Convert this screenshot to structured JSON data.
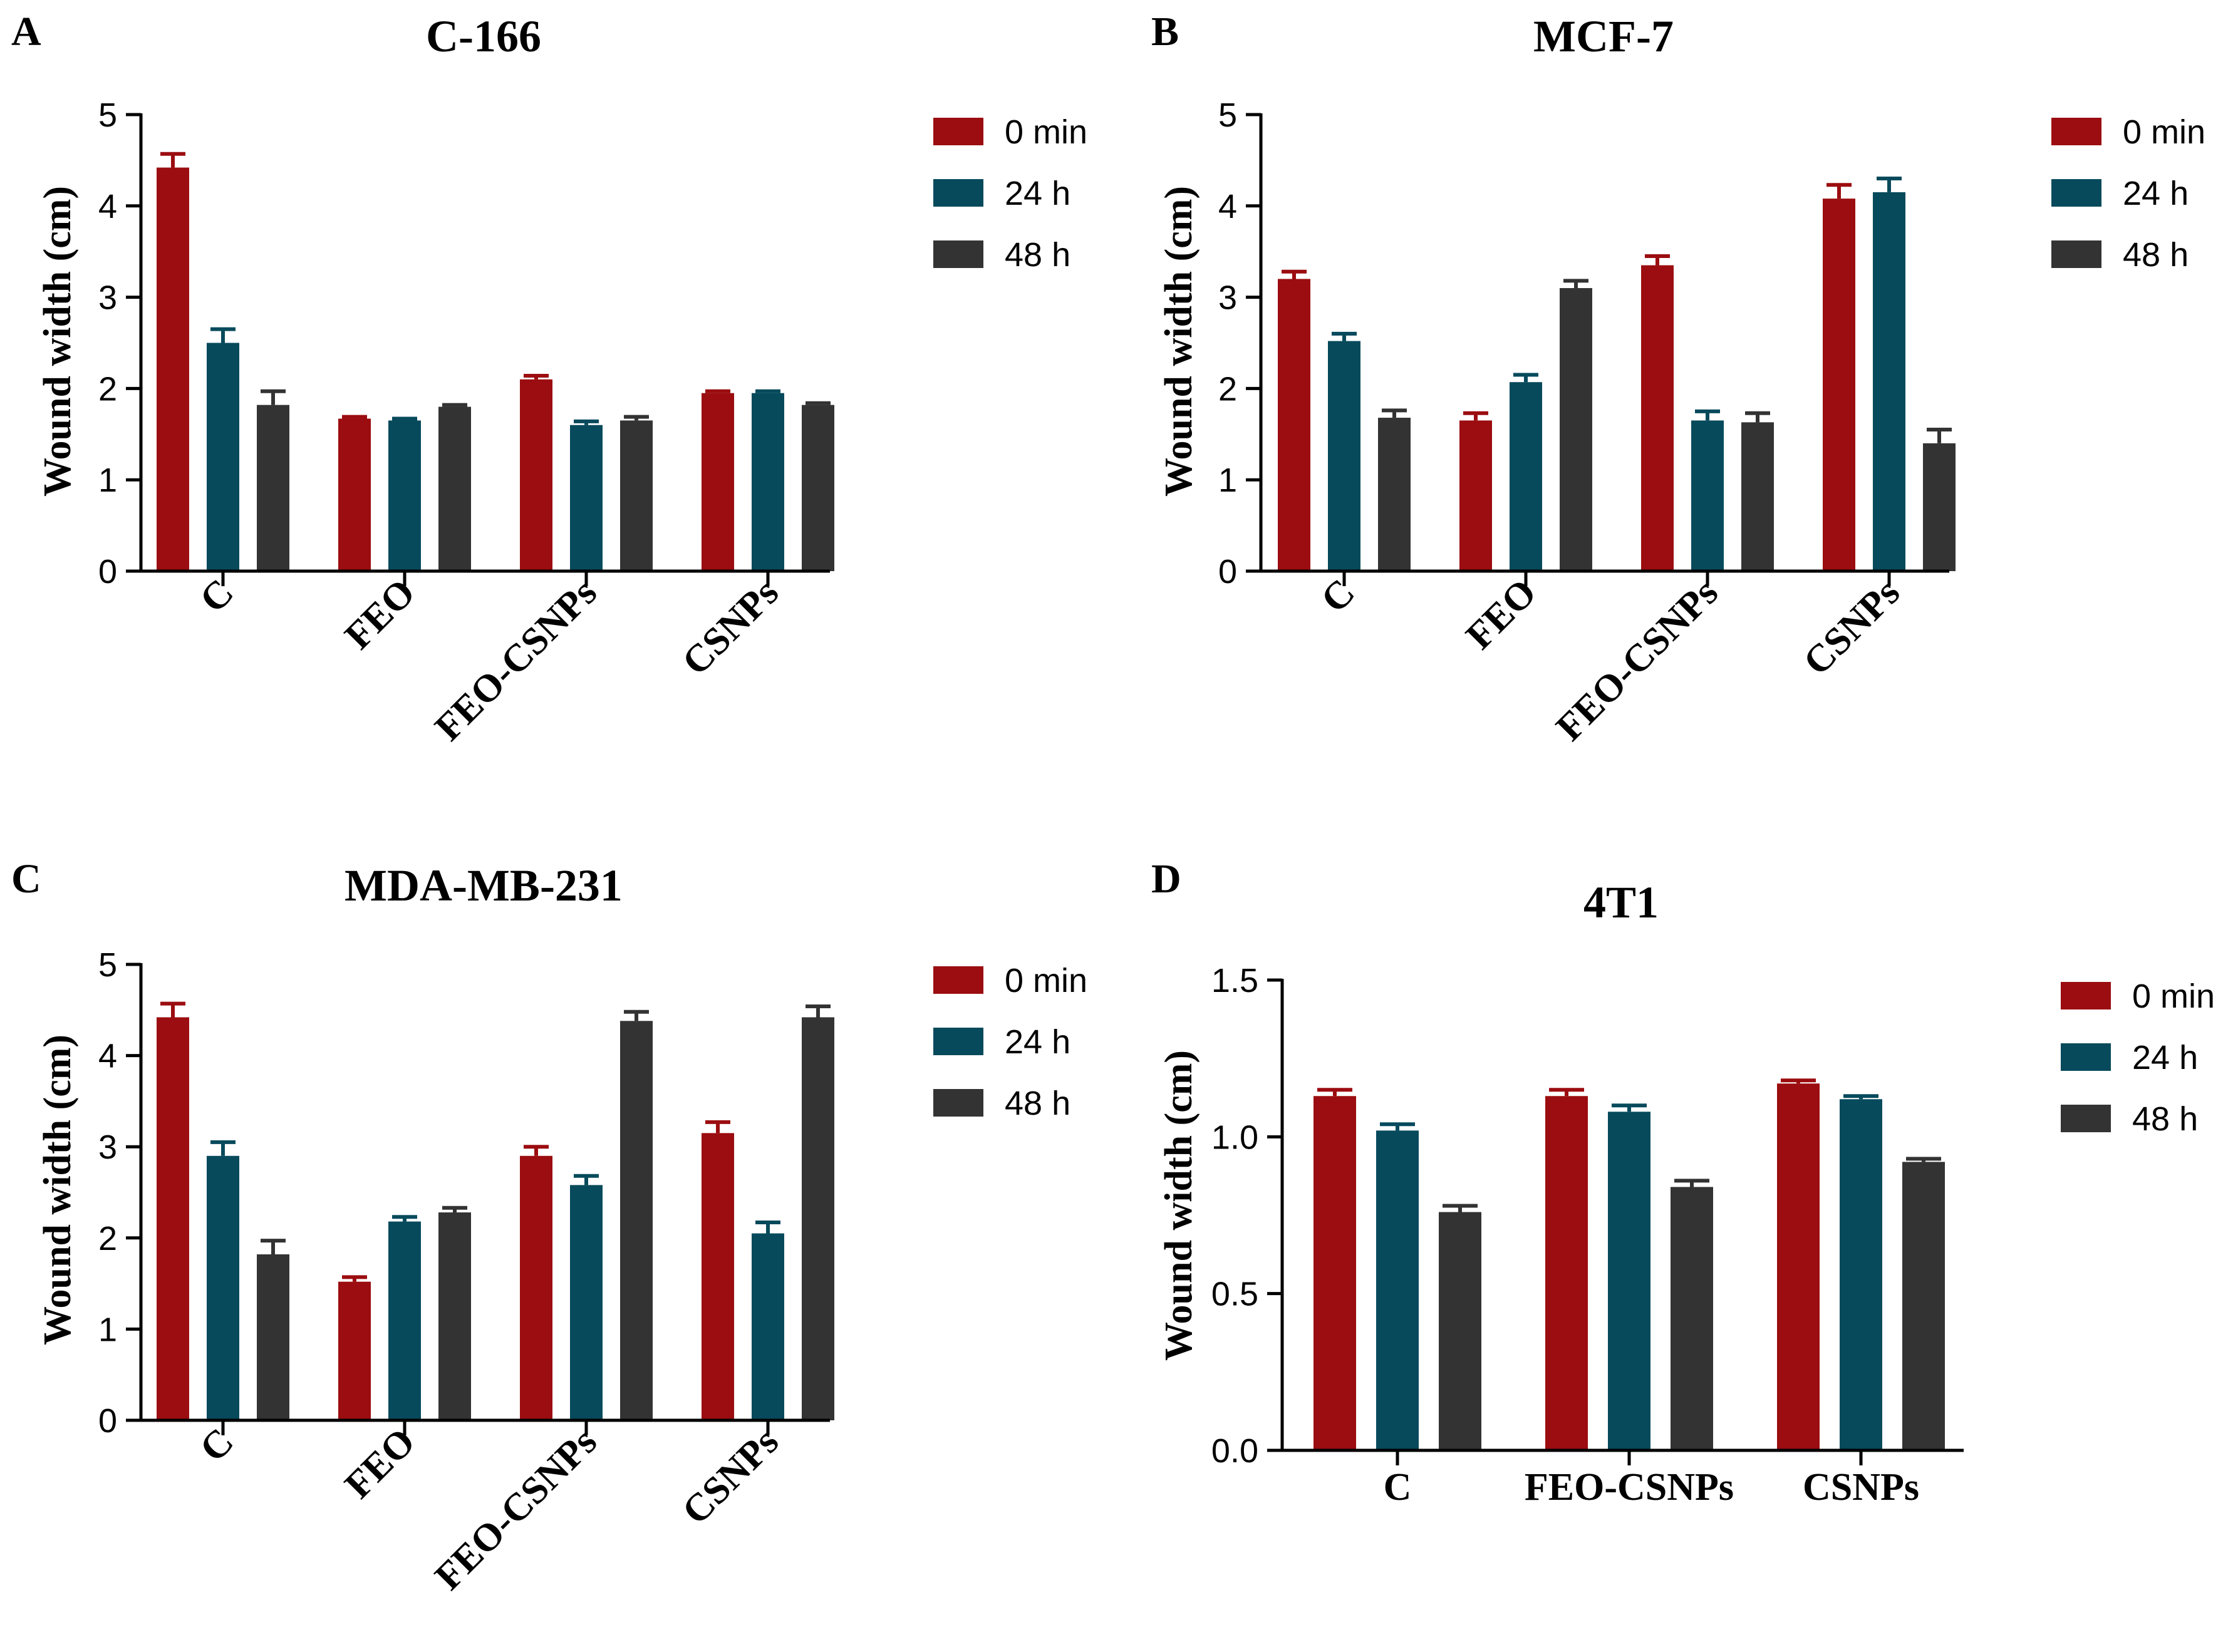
{
  "figure": {
    "series_names": [
      "0 min",
      "24 h",
      "48 h"
    ],
    "series_colors": [
      "#9b0d10",
      "#074a5c",
      "#333333"
    ]
  },
  "chart_data": [
    {
      "panel": "A",
      "type": "bar",
      "title": "C-166",
      "ylabel": "Wound width (cm)",
      "xlabel": "",
      "categories": [
        "C",
        "FEO",
        "FEO-CSNPs",
        "CSNPs"
      ],
      "ylim": [
        0,
        5
      ],
      "yticks": [
        "0",
        "1",
        "2",
        "3",
        "4",
        "5"
      ],
      "ytick_values": [
        0,
        1,
        2,
        3,
        4,
        5
      ],
      "rotated_xticks": true,
      "legend": "top-right",
      "series": [
        {
          "name": "0 min",
          "values": [
            4.42,
            1.67,
            2.1,
            1.95
          ],
          "errors": [
            0.15,
            0.02,
            0.04,
            0.02
          ]
        },
        {
          "name": "24 h",
          "values": [
            2.5,
            1.65,
            1.6,
            1.95
          ],
          "errors": [
            0.15,
            0.02,
            0.04,
            0.02
          ]
        },
        {
          "name": "48 h",
          "values": [
            1.82,
            1.8,
            1.65,
            1.82
          ],
          "errors": [
            0.15,
            0.02,
            0.04,
            0.02
          ]
        }
      ]
    },
    {
      "panel": "B",
      "type": "bar",
      "title": "MCF-7",
      "ylabel": "Wound width (cm)",
      "xlabel": "",
      "categories": [
        "C",
        "FEO",
        "FEO-CSNPs",
        "CSNPs"
      ],
      "ylim": [
        0,
        5
      ],
      "yticks": [
        "0",
        "1",
        "2",
        "3",
        "4",
        "5"
      ],
      "ytick_values": [
        0,
        1,
        2,
        3,
        4,
        5
      ],
      "rotated_xticks": true,
      "legend": "top-right",
      "series": [
        {
          "name": "0 min",
          "values": [
            3.2,
            1.65,
            3.35,
            4.08
          ],
          "errors": [
            0.08,
            0.08,
            0.1,
            0.15
          ]
        },
        {
          "name": "24 h",
          "values": [
            2.52,
            2.07,
            1.65,
            4.15
          ],
          "errors": [
            0.08,
            0.08,
            0.1,
            0.15
          ]
        },
        {
          "name": "48 h",
          "values": [
            1.68,
            3.1,
            1.63,
            1.4
          ],
          "errors": [
            0.08,
            0.08,
            0.1,
            0.15
          ]
        }
      ]
    },
    {
      "panel": "C",
      "type": "bar",
      "title": "MDA-MB-231",
      "ylabel": "Wound width (cm)",
      "xlabel": "",
      "categories": [
        "C",
        "FEO",
        "FEO-CSNPs",
        "CSNPs"
      ],
      "ylim": [
        0,
        5
      ],
      "yticks": [
        "0",
        "1",
        "2",
        "3",
        "4",
        "5"
      ],
      "ytick_values": [
        0,
        1,
        2,
        3,
        4,
        5
      ],
      "rotated_xticks": true,
      "legend": "top-right",
      "series": [
        {
          "name": "0 min",
          "values": [
            4.42,
            1.52,
            2.9,
            3.15
          ],
          "errors": [
            0.15,
            0.05,
            0.1,
            0.12
          ]
        },
        {
          "name": "24 h",
          "values": [
            2.9,
            2.18,
            2.58,
            2.05
          ],
          "errors": [
            0.15,
            0.05,
            0.1,
            0.12
          ]
        },
        {
          "name": "48 h",
          "values": [
            1.82,
            2.28,
            4.38,
            4.42
          ],
          "errors": [
            0.15,
            0.05,
            0.1,
            0.12
          ]
        }
      ]
    },
    {
      "panel": "D",
      "type": "bar",
      "title": "4T1",
      "ylabel": "Wound width (cm)",
      "xlabel": "",
      "categories": [
        "C",
        "FEO-CSNPs",
        "CSNPs"
      ],
      "ylim": [
        0,
        1.5
      ],
      "yticks": [
        "0.0",
        "0.5",
        "1.0",
        "1.5"
      ],
      "ytick_values": [
        0,
        0.5,
        1.0,
        1.5
      ],
      "rotated_xticks": false,
      "legend": "top-right",
      "series": [
        {
          "name": "0 min",
          "values": [
            1.13,
            1.13,
            1.17
          ],
          "errors": [
            0.02,
            0.02,
            0.01
          ]
        },
        {
          "name": "24 h",
          "values": [
            1.02,
            1.08,
            1.12
          ],
          "errors": [
            0.02,
            0.02,
            0.01
          ]
        },
        {
          "name": "48 h",
          "values": [
            0.76,
            0.84,
            0.92
          ],
          "errors": [
            0.02,
            0.02,
            0.01
          ]
        }
      ]
    }
  ]
}
